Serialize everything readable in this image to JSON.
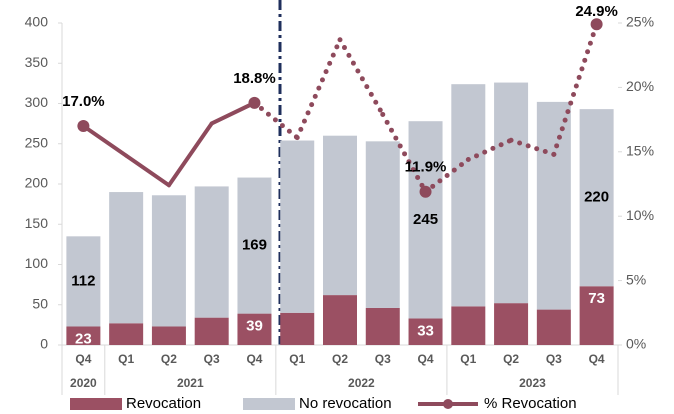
{
  "chart_data": {
    "type": "bar",
    "categories": [
      "Q4",
      "Q1",
      "Q2",
      "Q3",
      "Q4",
      "Q1",
      "Q2",
      "Q3",
      "Q4",
      "Q1",
      "Q2",
      "Q3",
      "Q4"
    ],
    "years": [
      {
        "name": "2020",
        "count": 1
      },
      {
        "name": "2021",
        "count": 4
      },
      {
        "name": "2022",
        "count": 4
      },
      {
        "name": "2023",
        "count": 4
      }
    ],
    "series": [
      {
        "name": "Revocation",
        "color": "#9b5063",
        "values": [
          23,
          27,
          23,
          34,
          39,
          40,
          62,
          46,
          33,
          48,
          52,
          44,
          73
        ],
        "value_labels": [
          "23",
          null,
          null,
          null,
          "39",
          null,
          null,
          null,
          "33",
          null,
          null,
          null,
          "73"
        ]
      },
      {
        "name": "No revocation",
        "color": "#c2c7d1",
        "values": [
          112,
          163,
          163,
          163,
          169,
          214,
          198,
          207,
          245,
          276,
          274,
          258,
          220
        ],
        "value_labels": [
          "112",
          null,
          null,
          null,
          "169",
          null,
          null,
          null,
          "245",
          null,
          null,
          null,
          "220"
        ]
      },
      {
        "name": "% Revocation",
        "color": "#8e4a5c",
        "axis": "y2",
        "type": "line",
        "values": [
          17.0,
          14.7,
          12.4,
          17.2,
          18.8,
          16.1,
          23.7,
          17.9,
          11.9,
          14.4,
          15.9,
          14.8,
          24.9
        ],
        "value_labels": [
          "17.0%",
          null,
          null,
          null,
          "18.8%",
          null,
          null,
          null,
          "11.9%",
          null,
          null,
          null,
          "24.9%"
        ],
        "line_styles": [
          "solid",
          "solid",
          "solid",
          "solid",
          "dotted",
          "dotted",
          "dotted",
          "dotted",
          "dotted",
          "dotted",
          "dotted",
          "dotted"
        ]
      }
    ],
    "ylim": [
      0,
      400
    ],
    "yticks": [
      0,
      50,
      100,
      150,
      200,
      250,
      300,
      350,
      400
    ],
    "y2lim": [
      0,
      25
    ],
    "y2ticks": [
      {
        "value": 0,
        "label": "0%"
      },
      {
        "value": 5,
        "label": "5%"
      },
      {
        "value": 10,
        "label": "10%"
      },
      {
        "value": 15,
        "label": "15%"
      },
      {
        "value": 20,
        "label": "20%"
      },
      {
        "value": 25,
        "label": "25%"
      }
    ],
    "grid": false,
    "legend": "bottom"
  }
}
